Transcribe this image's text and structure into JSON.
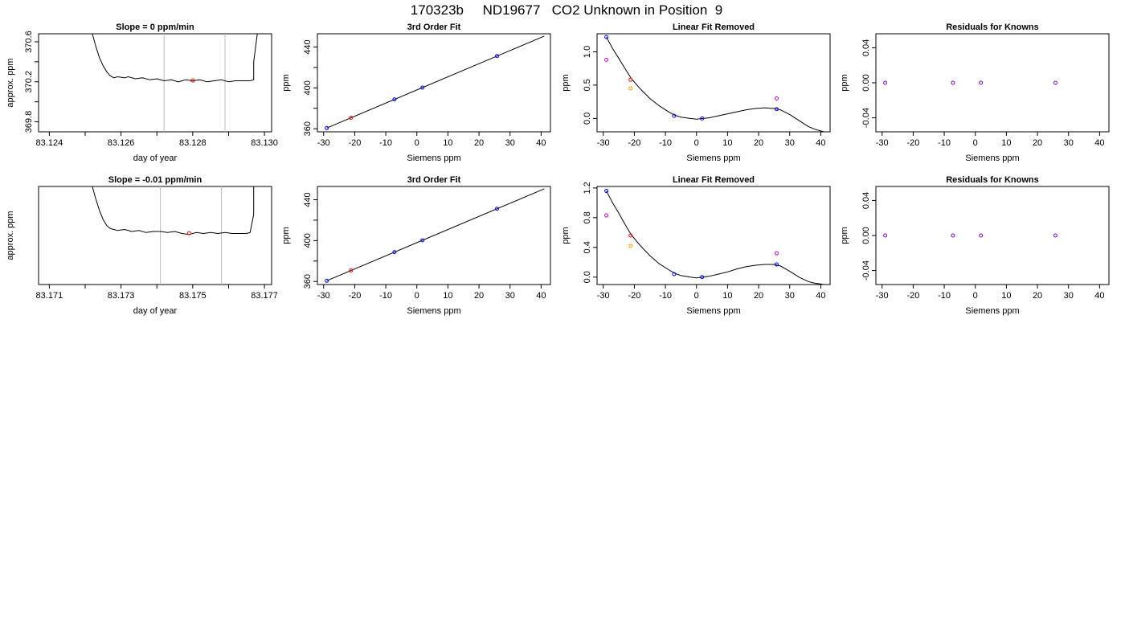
{
  "figure": {
    "title": "170323b     ND19677   CO2 Unknown in Position  9"
  },
  "chart_data": [
    {
      "type": "line",
      "title": "Slope =  0  ppm/min",
      "xlabel": "day of year",
      "ylabel": "approx. ppm",
      "xlim": [
        83.1237,
        83.1302
      ],
      "ylim": [
        369.7,
        370.68
      ],
      "xticks": [
        83.124,
        83.125,
        83.126,
        83.127,
        83.128,
        83.129,
        83.13
      ],
      "xtick_labels": [
        "83.124",
        "",
        "83.126",
        "",
        "83.128",
        "",
        "83.130"
      ],
      "yticks": [
        369.8,
        370.0,
        370.2,
        370.4,
        370.6
      ],
      "ytick_labels": [
        "369.8",
        "",
        "370.2",
        "",
        "370.6"
      ],
      "vlines": [
        83.1272,
        83.1289
      ],
      "series": [
        {
          "color": "#000000",
          "x": [
            83.1252,
            83.1253,
            83.1254,
            83.1255,
            83.1256,
            83.1257,
            83.1258,
            83.1259,
            83.1261,
            83.1262,
            83.1264,
            83.1266,
            83.1268,
            83.127,
            83.1272,
            83.1274,
            83.1276,
            83.1278,
            83.128,
            83.1282,
            83.1284,
            83.1286,
            83.1288,
            83.129,
            83.1292,
            83.1294,
            83.1296,
            83.1297,
            83.1297,
            83.1298
          ],
          "y": [
            370.68,
            370.55,
            370.44,
            370.36,
            370.3,
            370.26,
            370.24,
            370.25,
            370.24,
            370.25,
            370.23,
            370.24,
            370.22,
            370.23,
            370.21,
            370.22,
            370.2,
            370.22,
            370.21,
            370.22,
            370.2,
            370.21,
            370.22,
            370.2,
            370.21,
            370.21,
            370.21,
            370.22,
            370.4,
            370.68
          ]
        }
      ],
      "points": [
        {
          "x": 83.128,
          "y": 370.213,
          "color": "#ff0000"
        }
      ]
    },
    {
      "type": "scatter",
      "title": "3rd Order Fit",
      "xlabel": "Siemens ppm",
      "ylabel": "ppm",
      "xlim": [
        -32,
        43
      ],
      "ylim": [
        357,
        453
      ],
      "xticks": [
        -30,
        -20,
        -10,
        0,
        10,
        20,
        30,
        40
      ],
      "xtick_labels": [
        "-30",
        "-20",
        "-10",
        "0",
        "10",
        "20",
        "30",
        "40"
      ],
      "yticks": [
        360,
        380,
        400,
        420,
        440
      ],
      "ytick_labels": [
        "360",
        "",
        "400",
        "",
        "440"
      ],
      "curve": {
        "x": [
          -29,
          41
        ],
        "y": [
          360.7,
          450.7
        ],
        "color": "#000000"
      },
      "points": [
        {
          "x": -29,
          "y": 360.7,
          "color": "#0000ff"
        },
        {
          "x": -21.2,
          "y": 370.8,
          "color": "#ff0000"
        },
        {
          "x": -7.2,
          "y": 388.8,
          "color": "#0000ff"
        },
        {
          "x": 1.8,
          "y": 400.3,
          "color": "#0000ff"
        },
        {
          "x": 25.8,
          "y": 431.2,
          "color": "#0000ff"
        }
      ]
    },
    {
      "type": "scatter",
      "title": "Linear Fit Removed",
      "xlabel": "Siemens ppm",
      "ylabel": "ppm",
      "xlim": [
        -32,
        43
      ],
      "ylim": [
        -0.2,
        1.27
      ],
      "xticks": [
        -30,
        -20,
        -10,
        0,
        10,
        20,
        30,
        40
      ],
      "xtick_labels": [
        "-30",
        "-20",
        "-10",
        "0",
        "10",
        "20",
        "30",
        "40"
      ],
      "yticks": [
        0,
        0.5,
        1.0
      ],
      "ytick_labels": [
        "0.0",
        "0.5",
        "1.0"
      ],
      "curve": {
        "x": [
          -29,
          -27,
          -25,
          -23,
          -21,
          -18,
          -15,
          -12,
          -9,
          -7,
          -5,
          -2,
          0,
          2,
          4,
          7,
          10,
          13,
          16,
          19,
          22,
          25,
          27,
          30,
          33,
          36,
          38,
          41
        ],
        "y": [
          1.22,
          1.05,
          0.9,
          0.75,
          0.6,
          0.44,
          0.3,
          0.19,
          0.1,
          0.05,
          0.02,
          0.0,
          -0.01,
          0.0,
          0.01,
          0.04,
          0.07,
          0.1,
          0.13,
          0.15,
          0.16,
          0.15,
          0.13,
          0.06,
          -0.03,
          -0.12,
          -0.16,
          -0.2
        ],
        "color": "#000000"
      },
      "points": [
        {
          "x": -29,
          "y": 1.22,
          "color": "#0000ff"
        },
        {
          "x": -29,
          "y": 0.88,
          "color": "#cc00cc"
        },
        {
          "x": -21.2,
          "y": 0.58,
          "color": "#ff0000"
        },
        {
          "x": -21.2,
          "y": 0.45,
          "color": "#ff9900"
        },
        {
          "x": -7.2,
          "y": 0.04,
          "color": "#0000ff"
        },
        {
          "x": 1.8,
          "y": 0.0,
          "color": "#0000ff"
        },
        {
          "x": 25.8,
          "y": 0.3,
          "color": "#cc00cc"
        },
        {
          "x": 25.8,
          "y": 0.14,
          "color": "#0000ff"
        }
      ]
    },
    {
      "type": "scatter",
      "title": "Residuals for Knowns",
      "xlabel": "Siemens ppm",
      "ylabel": "ppm",
      "xlim": [
        -32,
        43
      ],
      "ylim": [
        -0.056,
        0.056
      ],
      "xticks": [
        -30,
        -20,
        -10,
        0,
        10,
        20,
        30,
        40
      ],
      "xtick_labels": [
        "-30",
        "-20",
        "-10",
        "0",
        "10",
        "20",
        "30",
        "40"
      ],
      "yticks": [
        -0.04,
        0,
        0.04
      ],
      "ytick_labels": [
        "-0.04",
        "0.00",
        "0.04"
      ],
      "points": [
        {
          "x": -29,
          "y": 0.0,
          "color": "#7700cc"
        },
        {
          "x": -7.2,
          "y": 0.0,
          "color": "#7700cc"
        },
        {
          "x": 1.8,
          "y": 0.0,
          "color": "#7700cc"
        },
        {
          "x": 25.8,
          "y": 0.0,
          "color": "#7700cc"
        }
      ]
    },
    {
      "type": "line",
      "title": "Slope =  -0.01  ppm/min",
      "xlabel": "day of year",
      "ylabel": "approx. ppm",
      "xlim": [
        83.1707,
        83.1772
      ],
      "ylim": [
        369.7,
        370.68
      ],
      "xticks": [
        83.171,
        83.172,
        83.173,
        83.174,
        83.175,
        83.176,
        83.177
      ],
      "xtick_labels": [
        "83.171",
        "",
        "83.173",
        "",
        "83.175",
        "",
        "83.177"
      ],
      "vlines": [
        83.1741,
        83.1758
      ],
      "series": [
        {
          "color": "#000000",
          "x": [
            83.1722,
            83.1723,
            83.1724,
            83.1725,
            83.1726,
            83.1727,
            83.1728,
            83.1729,
            83.1731,
            83.1733,
            83.1735,
            83.1737,
            83.1739,
            83.1741,
            83.1743,
            83.1745,
            83.1747,
            83.1749,
            83.1751,
            83.1753,
            83.1755,
            83.1757,
            83.1759,
            83.1761,
            83.1763,
            83.1765,
            83.1766,
            83.1767,
            83.1767
          ],
          "y": [
            370.68,
            370.55,
            370.44,
            370.35,
            370.29,
            370.26,
            370.25,
            370.24,
            370.25,
            370.23,
            370.24,
            370.22,
            370.23,
            370.23,
            370.22,
            370.23,
            370.21,
            370.2,
            370.22,
            370.21,
            370.22,
            370.21,
            370.22,
            370.21,
            370.21,
            370.21,
            370.22,
            370.4,
            370.68
          ]
        }
      ],
      "points": [
        {
          "x": 83.1749,
          "y": 370.213,
          "color": "#ff0000"
        }
      ]
    },
    {
      "type": "scatter",
      "title": "3rd Order Fit",
      "xlabel": "Siemens ppm",
      "ylabel": "ppm",
      "xlim": [
        -32,
        43
      ],
      "ylim": [
        357,
        453
      ],
      "xticks": [
        -30,
        -20,
        -10,
        0,
        10,
        20,
        30,
        40
      ],
      "xtick_labels": [
        "-30",
        "-20",
        "-10",
        "0",
        "10",
        "20",
        "30",
        "40"
      ],
      "yticks": [
        360,
        380,
        400,
        420,
        440
      ],
      "ytick_labels": [
        "360",
        "",
        "400",
        "",
        "440"
      ],
      "curve": {
        "x": [
          -29,
          41
        ],
        "y": [
          360.7,
          450.7
        ],
        "color": "#000000"
      },
      "points": [
        {
          "x": -29,
          "y": 360.7,
          "color": "#0000ff"
        },
        {
          "x": -21.2,
          "y": 370.8,
          "color": "#ff0000"
        },
        {
          "x": -7.2,
          "y": 388.8,
          "color": "#0000ff"
        },
        {
          "x": 1.8,
          "y": 400.3,
          "color": "#0000ff"
        },
        {
          "x": 25.8,
          "y": 431.2,
          "color": "#0000ff"
        }
      ]
    },
    {
      "type": "scatter",
      "title": "Linear Fit Removed",
      "xlabel": "Siemens ppm",
      "ylabel": "ppm",
      "xlim": [
        -32,
        43
      ],
      "ylim": [
        -0.1,
        1.22
      ],
      "xticks": [
        -30,
        -20,
        -10,
        0,
        10,
        20,
        30,
        40
      ],
      "xtick_labels": [
        "-30",
        "-20",
        "-10",
        "0",
        "10",
        "20",
        "30",
        "40"
      ],
      "yticks": [
        0,
        0.4,
        0.8,
        1.2
      ],
      "ytick_labels": [
        "0.0",
        "0.4",
        "0.8",
        "1.2"
      ],
      "curve": {
        "x": [
          -29,
          -27,
          -25,
          -23,
          -21,
          -18,
          -15,
          -12,
          -9,
          -7,
          -5,
          -2,
          0,
          2,
          4,
          7,
          10,
          13,
          16,
          19,
          22,
          25,
          27,
          30,
          33,
          36,
          38,
          41
        ],
        "y": [
          1.16,
          1.0,
          0.86,
          0.71,
          0.57,
          0.42,
          0.29,
          0.18,
          0.1,
          0.05,
          0.02,
          0.0,
          -0.01,
          0.0,
          0.01,
          0.04,
          0.07,
          0.11,
          0.14,
          0.16,
          0.17,
          0.17,
          0.15,
          0.08,
          0.0,
          -0.06,
          -0.08,
          -0.1
        ],
        "color": "#000000"
      },
      "points": [
        {
          "x": -29,
          "y": 1.16,
          "color": "#0000ff"
        },
        {
          "x": -29,
          "y": 0.83,
          "color": "#cc00cc"
        },
        {
          "x": -21.2,
          "y": 0.56,
          "color": "#ff0000"
        },
        {
          "x": -21.2,
          "y": 0.42,
          "color": "#ff9900"
        },
        {
          "x": -7.2,
          "y": 0.04,
          "color": "#0000ff"
        },
        {
          "x": 1.8,
          "y": 0.0,
          "color": "#0000ff"
        },
        {
          "x": 25.8,
          "y": 0.32,
          "color": "#cc00cc"
        },
        {
          "x": 25.8,
          "y": 0.17,
          "color": "#0000ff"
        }
      ]
    },
    {
      "type": "scatter",
      "title": "Residuals for Knowns",
      "xlabel": "Siemens ppm",
      "ylabel": "ppm",
      "xlim": [
        -32,
        43
      ],
      "ylim": [
        -0.056,
        0.056
      ],
      "xticks": [
        -30,
        -20,
        -10,
        0,
        10,
        20,
        30,
        40
      ],
      "xtick_labels": [
        "-30",
        "-20",
        "-10",
        "0",
        "10",
        "20",
        "30",
        "40"
      ],
      "yticks": [
        -0.04,
        0,
        0.04
      ],
      "ytick_labels": [
        "-0.04",
        "0.00",
        "0.04"
      ],
      "points": [
        {
          "x": -29,
          "y": 0.0,
          "color": "#7700cc"
        },
        {
          "x": -7.2,
          "y": 0.0,
          "color": "#7700cc"
        },
        {
          "x": 1.8,
          "y": 0.0,
          "color": "#7700cc"
        },
        {
          "x": 25.8,
          "y": 0.0,
          "color": "#7700cc"
        }
      ]
    }
  ]
}
